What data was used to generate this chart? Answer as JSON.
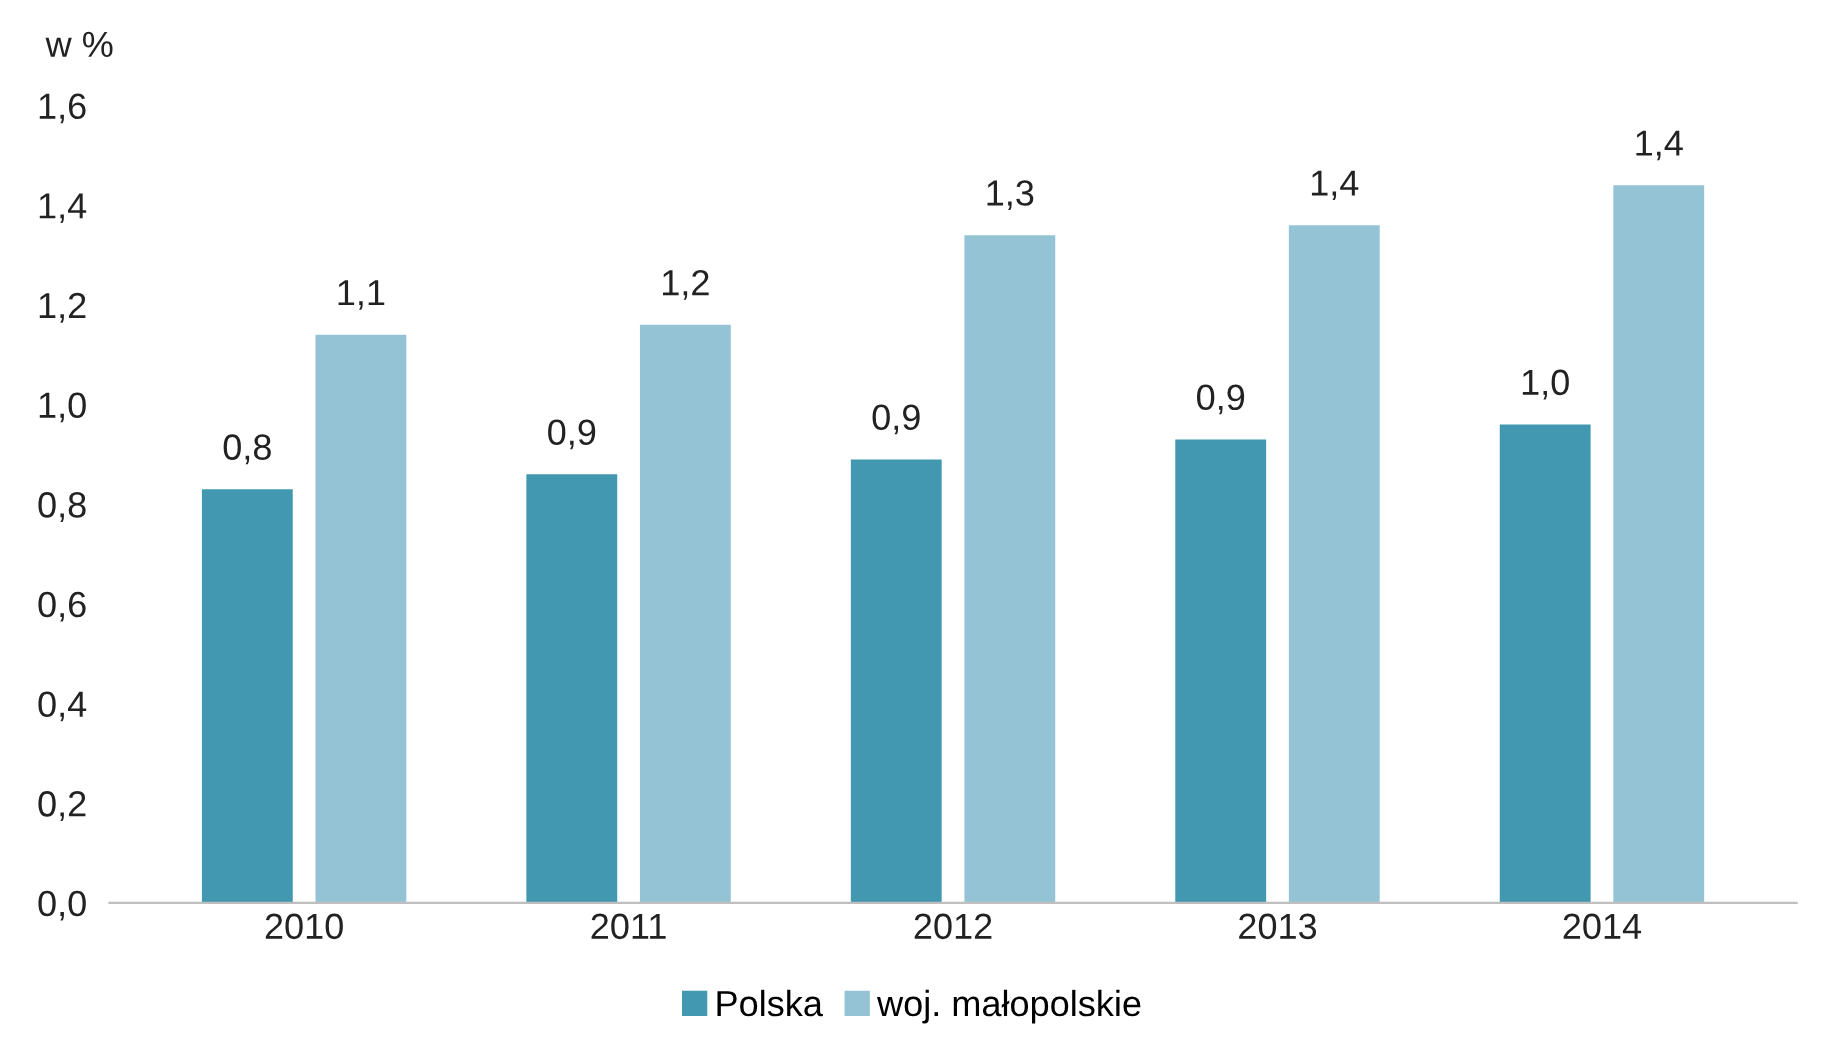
{
  "chart_data": {
    "type": "bar",
    "ylabel": "w %",
    "categories": [
      "2010",
      "2011",
      "2012",
      "2013",
      "2014"
    ],
    "series": [
      {
        "name": "Polska",
        "color": "#4198b0",
        "values": [
          0.83,
          0.86,
          0.89,
          0.93,
          0.96
        ],
        "value_labels": [
          "0,8",
          "0,9",
          "0,9",
          "0,9",
          "1,0"
        ]
      },
      {
        "name": "woj. małopolskie",
        "color": "#93c3d5",
        "values": [
          1.14,
          1.16,
          1.34,
          1.36,
          1.44
        ],
        "value_labels": [
          "1,1",
          "1,2",
          "1,3",
          "1,4",
          "1,4"
        ]
      }
    ],
    "ylim": [
      0,
      1.6
    ],
    "yticks": [
      {
        "value": 0,
        "label": "0,0"
      },
      {
        "value": 0.2,
        "label": "0,2"
      },
      {
        "value": 0.4,
        "label": "0,4"
      },
      {
        "value": 0.6,
        "label": "0,6"
      },
      {
        "value": 0.8,
        "label": "0,8"
      },
      {
        "value": 1.0,
        "label": "1,0"
      },
      {
        "value": 1.2,
        "label": "1,2"
      },
      {
        "value": 1.4,
        "label": "1,4"
      },
      {
        "value": 1.6,
        "label": "1,6"
      }
    ],
    "grid": false,
    "legend": "bottom"
  }
}
